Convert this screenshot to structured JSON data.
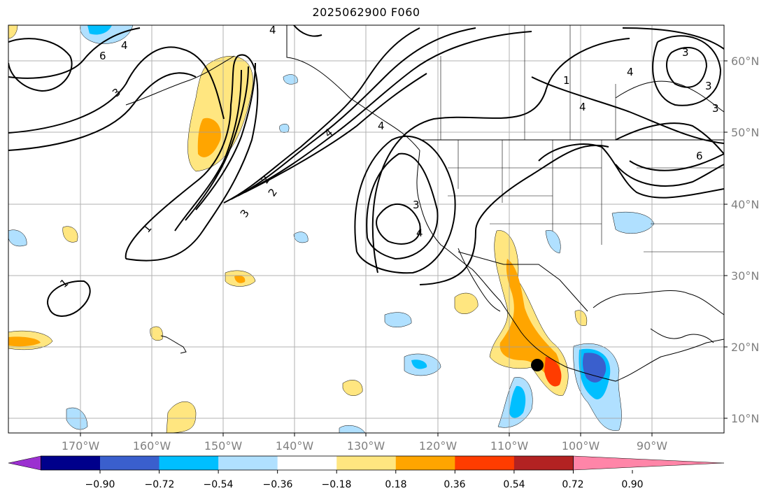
{
  "title": "2025062900 F060",
  "lon_labels": [
    "170°W",
    "160°W",
    "150°W",
    "140°W",
    "130°W",
    "120°W",
    "110°W",
    "100°W",
    "90°W"
  ],
  "lat_labels": [
    "60°N",
    "50°N",
    "40°N",
    "30°N",
    "20°N",
    "10°N"
  ],
  "colorbar": {
    "tick_labels": [
      "−0.90",
      "−0.72",
      "−0.54",
      "−0.36",
      "−0.18",
      "0.18",
      "0.36",
      "0.54",
      "0.72",
      "0.90"
    ],
    "colors": [
      "#9b30d0",
      "#00008b",
      "#3a5fcd",
      "#00bfff",
      "#b0e0ff",
      "#ffffff",
      "#ffe680",
      "#ffa500",
      "#ff3c00",
      "#b22222",
      "#ff85a8"
    ]
  },
  "contour_labels": [
    "1",
    "2",
    "3",
    "4",
    "4",
    "3",
    "2",
    "1",
    "3",
    "4",
    "1",
    "3",
    "4",
    "3",
    "4",
    "6",
    "6",
    "4",
    "3",
    "4"
  ],
  "marker": {
    "name": "black-dot",
    "lon": -105.5,
    "lat": 17.4
  }
}
